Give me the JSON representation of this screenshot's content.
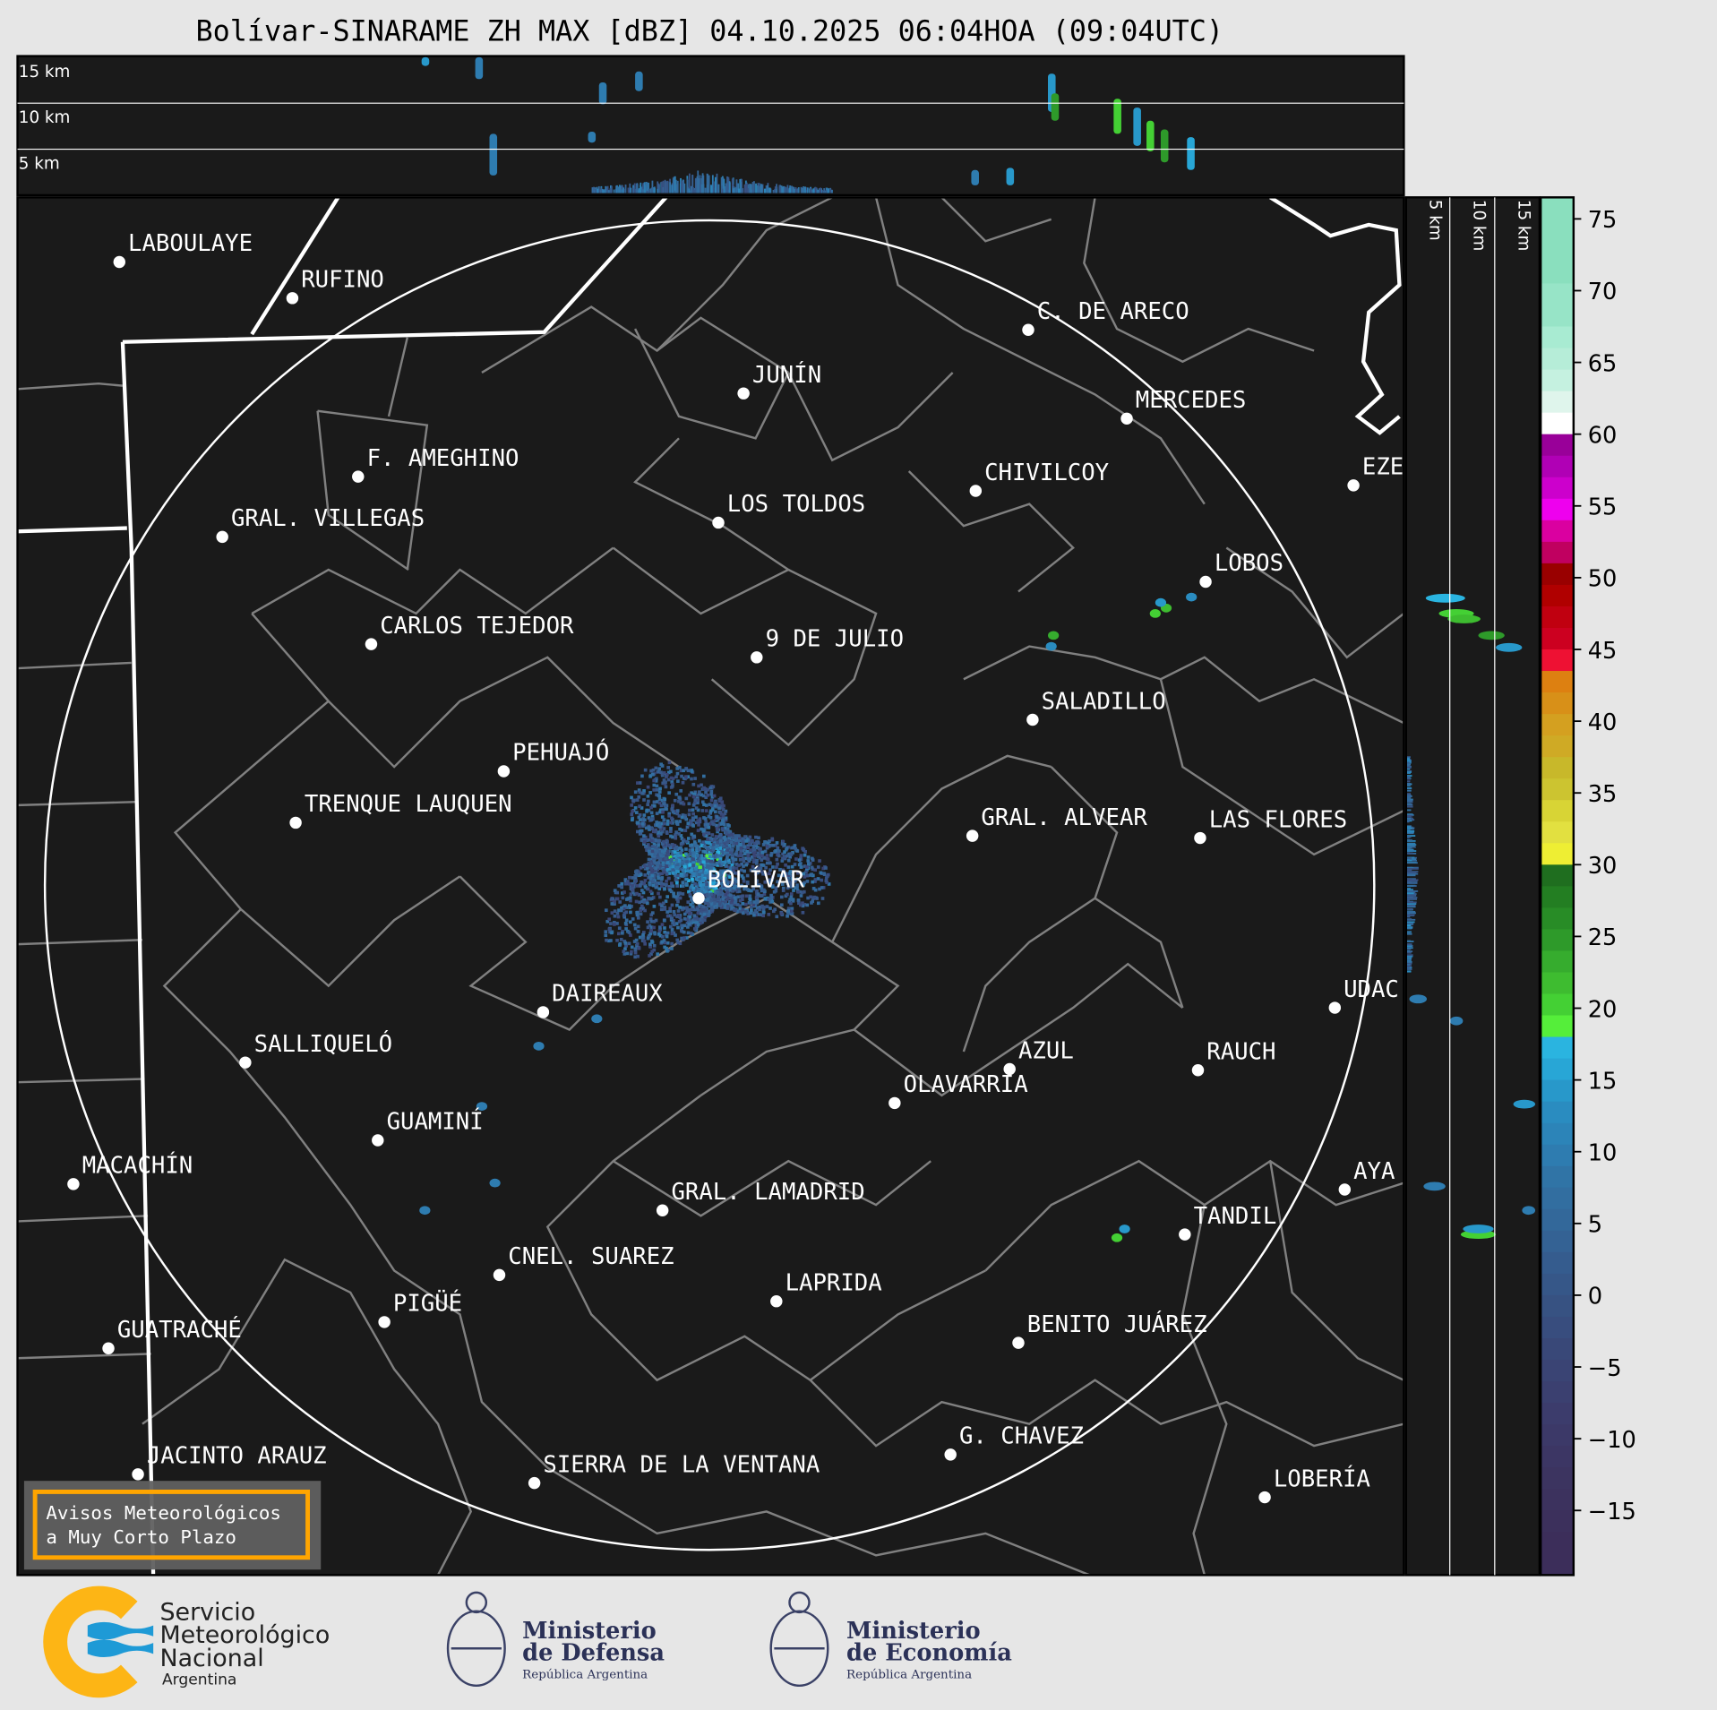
{
  "title": "Bolívar-SINARAME ZH MAX [dBZ] 04.10.2025 06:04HOA (09:04UTC)",
  "top_profile": {
    "height_labels": [
      "15 km",
      "10 km",
      "5 km"
    ]
  },
  "side_profile": {
    "height_labels": [
      "5 km",
      "10 km",
      "15 km"
    ]
  },
  "colorbar": {
    "unit": "dBZ",
    "ticks": [
      "75",
      "70",
      "65",
      "60",
      "55",
      "50",
      "45",
      "40",
      "35",
      "30",
      "25",
      "20",
      "15",
      "10",
      "5",
      "0",
      "−5",
      "−10",
      "−15"
    ],
    "range": [
      -19.5,
      76.5
    ],
    "bands": [
      [
        70.5,
        76.5,
        "#8adfbe"
      ],
      [
        67.5,
        70.5,
        "#97e4c7"
      ],
      [
        66,
        67.5,
        "#a8ebd2"
      ],
      [
        64.5,
        66,
        "#b6edd8"
      ],
      [
        63,
        64.5,
        "#c5f1e0"
      ],
      [
        61.5,
        63,
        "#dff5ec"
      ],
      [
        60,
        61.5,
        "#ffffff"
      ],
      [
        58.5,
        60,
        "#990099"
      ],
      [
        57,
        58.5,
        "#b000b5"
      ],
      [
        55.5,
        57,
        "#cc00cc"
      ],
      [
        54,
        55.5,
        "#ee00ee"
      ],
      [
        52.5,
        54,
        "#da00a0"
      ],
      [
        51,
        52.5,
        "#c00060"
      ],
      [
        49.5,
        51,
        "#990000"
      ],
      [
        48,
        49.5,
        "#b00000"
      ],
      [
        46.5,
        48,
        "#c00010"
      ],
      [
        45,
        46.5,
        "#cc0020"
      ],
      [
        43.5,
        45,
        "#ee1133"
      ],
      [
        42,
        43.5,
        "#dd8011"
      ],
      [
        40.5,
        42,
        "#d89018"
      ],
      [
        39,
        40.5,
        "#d4a020"
      ],
      [
        37.5,
        39,
        "#cfaa25"
      ],
      [
        36,
        37.5,
        "#c8b82a"
      ],
      [
        34.5,
        36,
        "#ccc430"
      ],
      [
        33,
        34.5,
        "#d8d435"
      ],
      [
        31.5,
        33,
        "#e2e040"
      ],
      [
        30,
        31.5,
        "#eeee33"
      ],
      [
        28.5,
        30,
        "#1f6e1f"
      ],
      [
        27,
        28.5,
        "#237e22"
      ],
      [
        25.5,
        27,
        "#288c26"
      ],
      [
        24,
        25.5,
        "#2e9a2a"
      ],
      [
        22.5,
        24,
        "#36ac2e"
      ],
      [
        21,
        22.5,
        "#3ebc30"
      ],
      [
        19.5,
        21,
        "#44d034"
      ],
      [
        18,
        19.5,
        "#55ee3a"
      ],
      [
        16.5,
        18,
        "#2ab4e0"
      ],
      [
        15,
        16.5,
        "#28a6d6"
      ],
      [
        13.5,
        15,
        "#2898ca"
      ],
      [
        12,
        13.5,
        "#2a8cc0"
      ],
      [
        10.5,
        12,
        "#2c84b8"
      ],
      [
        9,
        10.5,
        "#2e7cb0"
      ],
      [
        7.5,
        9,
        "#3074a6"
      ],
      [
        6,
        7.5,
        "#326ea0"
      ],
      [
        4.5,
        6,
        "#33689a"
      ],
      [
        3,
        4.5,
        "#346294"
      ],
      [
        1.5,
        3,
        "#355c8e"
      ],
      [
        0,
        1.5,
        "#365788"
      ],
      [
        -1.5,
        0,
        "#375282"
      ],
      [
        -3,
        -1.5,
        "#384d7e"
      ],
      [
        -4.5,
        -3,
        "#394878"
      ],
      [
        -6,
        -4.5,
        "#3a4474"
      ],
      [
        -7.5,
        -6,
        "#3b4070"
      ],
      [
        -9,
        -7.5,
        "#3c3c6c"
      ],
      [
        -10.5,
        -9,
        "#3c3968"
      ],
      [
        -12,
        -10.5,
        "#3c3664"
      ],
      [
        -13.5,
        -12,
        "#3c3460"
      ],
      [
        -15,
        -13.5,
        "#3c325e"
      ],
      [
        -16.5,
        -15,
        "#3c305c"
      ],
      [
        -19.5,
        -16.5,
        "#3c2e5a"
      ]
    ]
  },
  "radar_site": "BOLÍVAR",
  "cities": [
    "LABOULAYE",
    "RUFINO",
    "C. DE ARECO",
    "JUNÍN",
    "MERCEDES",
    "F. AMEGHINO",
    "CHIVILCOY",
    "EZE",
    "GRAL. VILLEGAS",
    "LOS TOLDOS",
    "LOBOS",
    "CARLOS TEJEDOR",
    "9 DE JULIO",
    "SALADILLO",
    "PEHUAJÓ",
    "TRENQUE LAUQUEN",
    "GRAL. ALVEAR",
    "LAS FLORES",
    "BOLÍVAR",
    "DAIREAUX",
    "UDAC",
    "SALLIQUELÓ",
    "AZUL",
    "RAUCH",
    "OLAVARRÍA",
    "GUAMINÍ",
    "MACACHÍN",
    "AYA",
    "GRAL. LAMADRID",
    "TANDIL",
    "CNEL. SUAREZ",
    "LAPRIDA",
    "PIGÜÉ",
    "BENITO JUÁREZ",
    "GUATRACHÉ",
    "G. CHAVEZ",
    "JACINTO ARAUZ",
    "SIERRA DE LA VENTANA",
    "LOBERÍA"
  ],
  "warning_box": {
    "line1": "Avisos Meteorológicos",
    "line2": "a Muy Corto Plazo",
    "border_color": "#ffa500"
  },
  "logos": {
    "smn": {
      "line1": "Servicio",
      "line2": "Meteorológico",
      "line3": "Nacional",
      "line4": "Argentina"
    },
    "defensa": {
      "line1": "Ministerio",
      "line2": "de Defensa",
      "line3": "República Argentina"
    },
    "economia": {
      "line1": "Ministerio",
      "line2": "de Economía",
      "line3": "República Argentina"
    }
  }
}
